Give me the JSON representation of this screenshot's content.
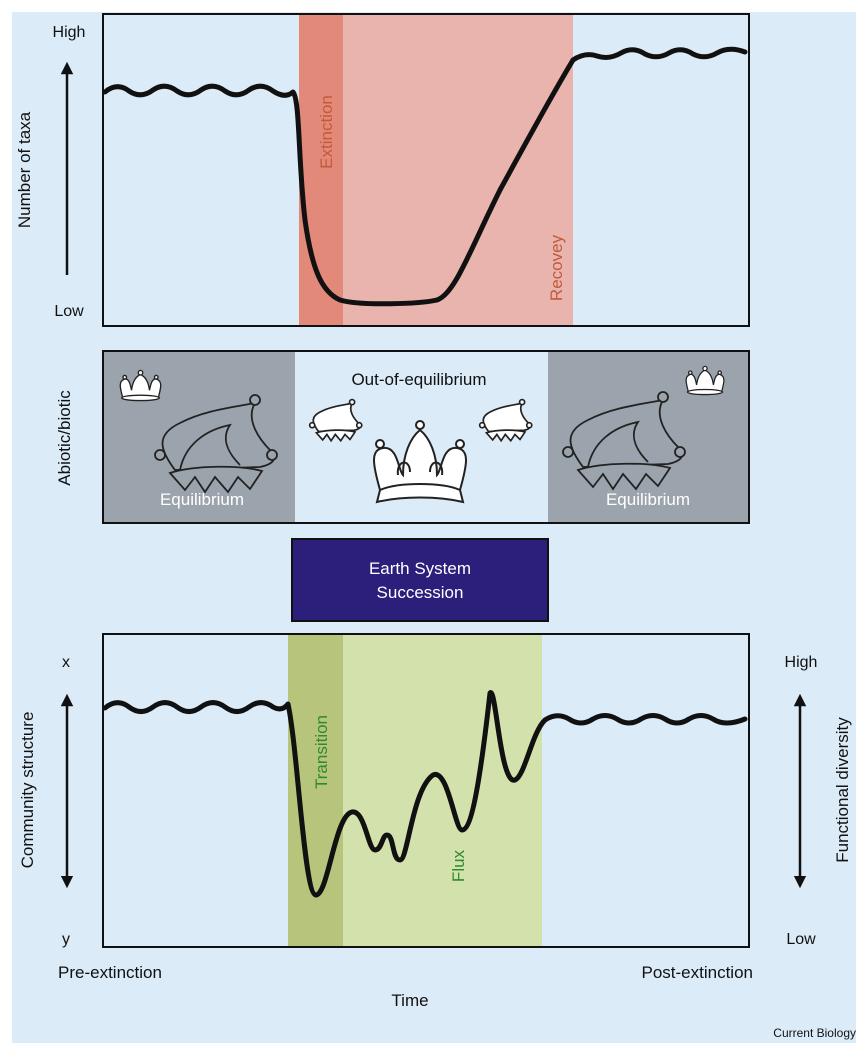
{
  "colors": {
    "background": "#dcebf8",
    "panel": "#dcebf8",
    "extinction_band": "#e3897a",
    "recovery_band": "#e8b4ad",
    "extinction_text": "#c35a3a",
    "equilibrium_box": "#9ba4ac",
    "succession_box": "#2c1f7c",
    "transition_band": "#b7c47c",
    "flux_band": "#d3e2ad",
    "green_text": "#2f8a30",
    "curve": "#111111"
  },
  "top_panel": {
    "y_label": "Number of taxa",
    "high_label": "High",
    "low_label": "Low",
    "extinction_label": "Extinction",
    "recovery_label": "Recovey"
  },
  "middle_panel": {
    "side_label": "Abiotic/biotic",
    "center_label": "Out-of-equilibrium",
    "left_label": "Equilibrium",
    "right_label": "Equilibrium",
    "icons": [
      "crown-icon",
      "jester-hat-icon"
    ]
  },
  "succession_box": {
    "line1": "Earth System",
    "line2": "Succession"
  },
  "bottom_panel": {
    "left_axis_label": "Community structure",
    "top_left_label": "x",
    "bottom_left_label": "y",
    "right_axis_label": "Functional diversity",
    "high_label": "High",
    "low_label": "Low",
    "transition_label": "Transition",
    "flux_label": "Flux",
    "pre_label": "Pre-extinction",
    "post_label": "Post-extinction",
    "time_label": "Time"
  },
  "credit": "Current Biology"
}
